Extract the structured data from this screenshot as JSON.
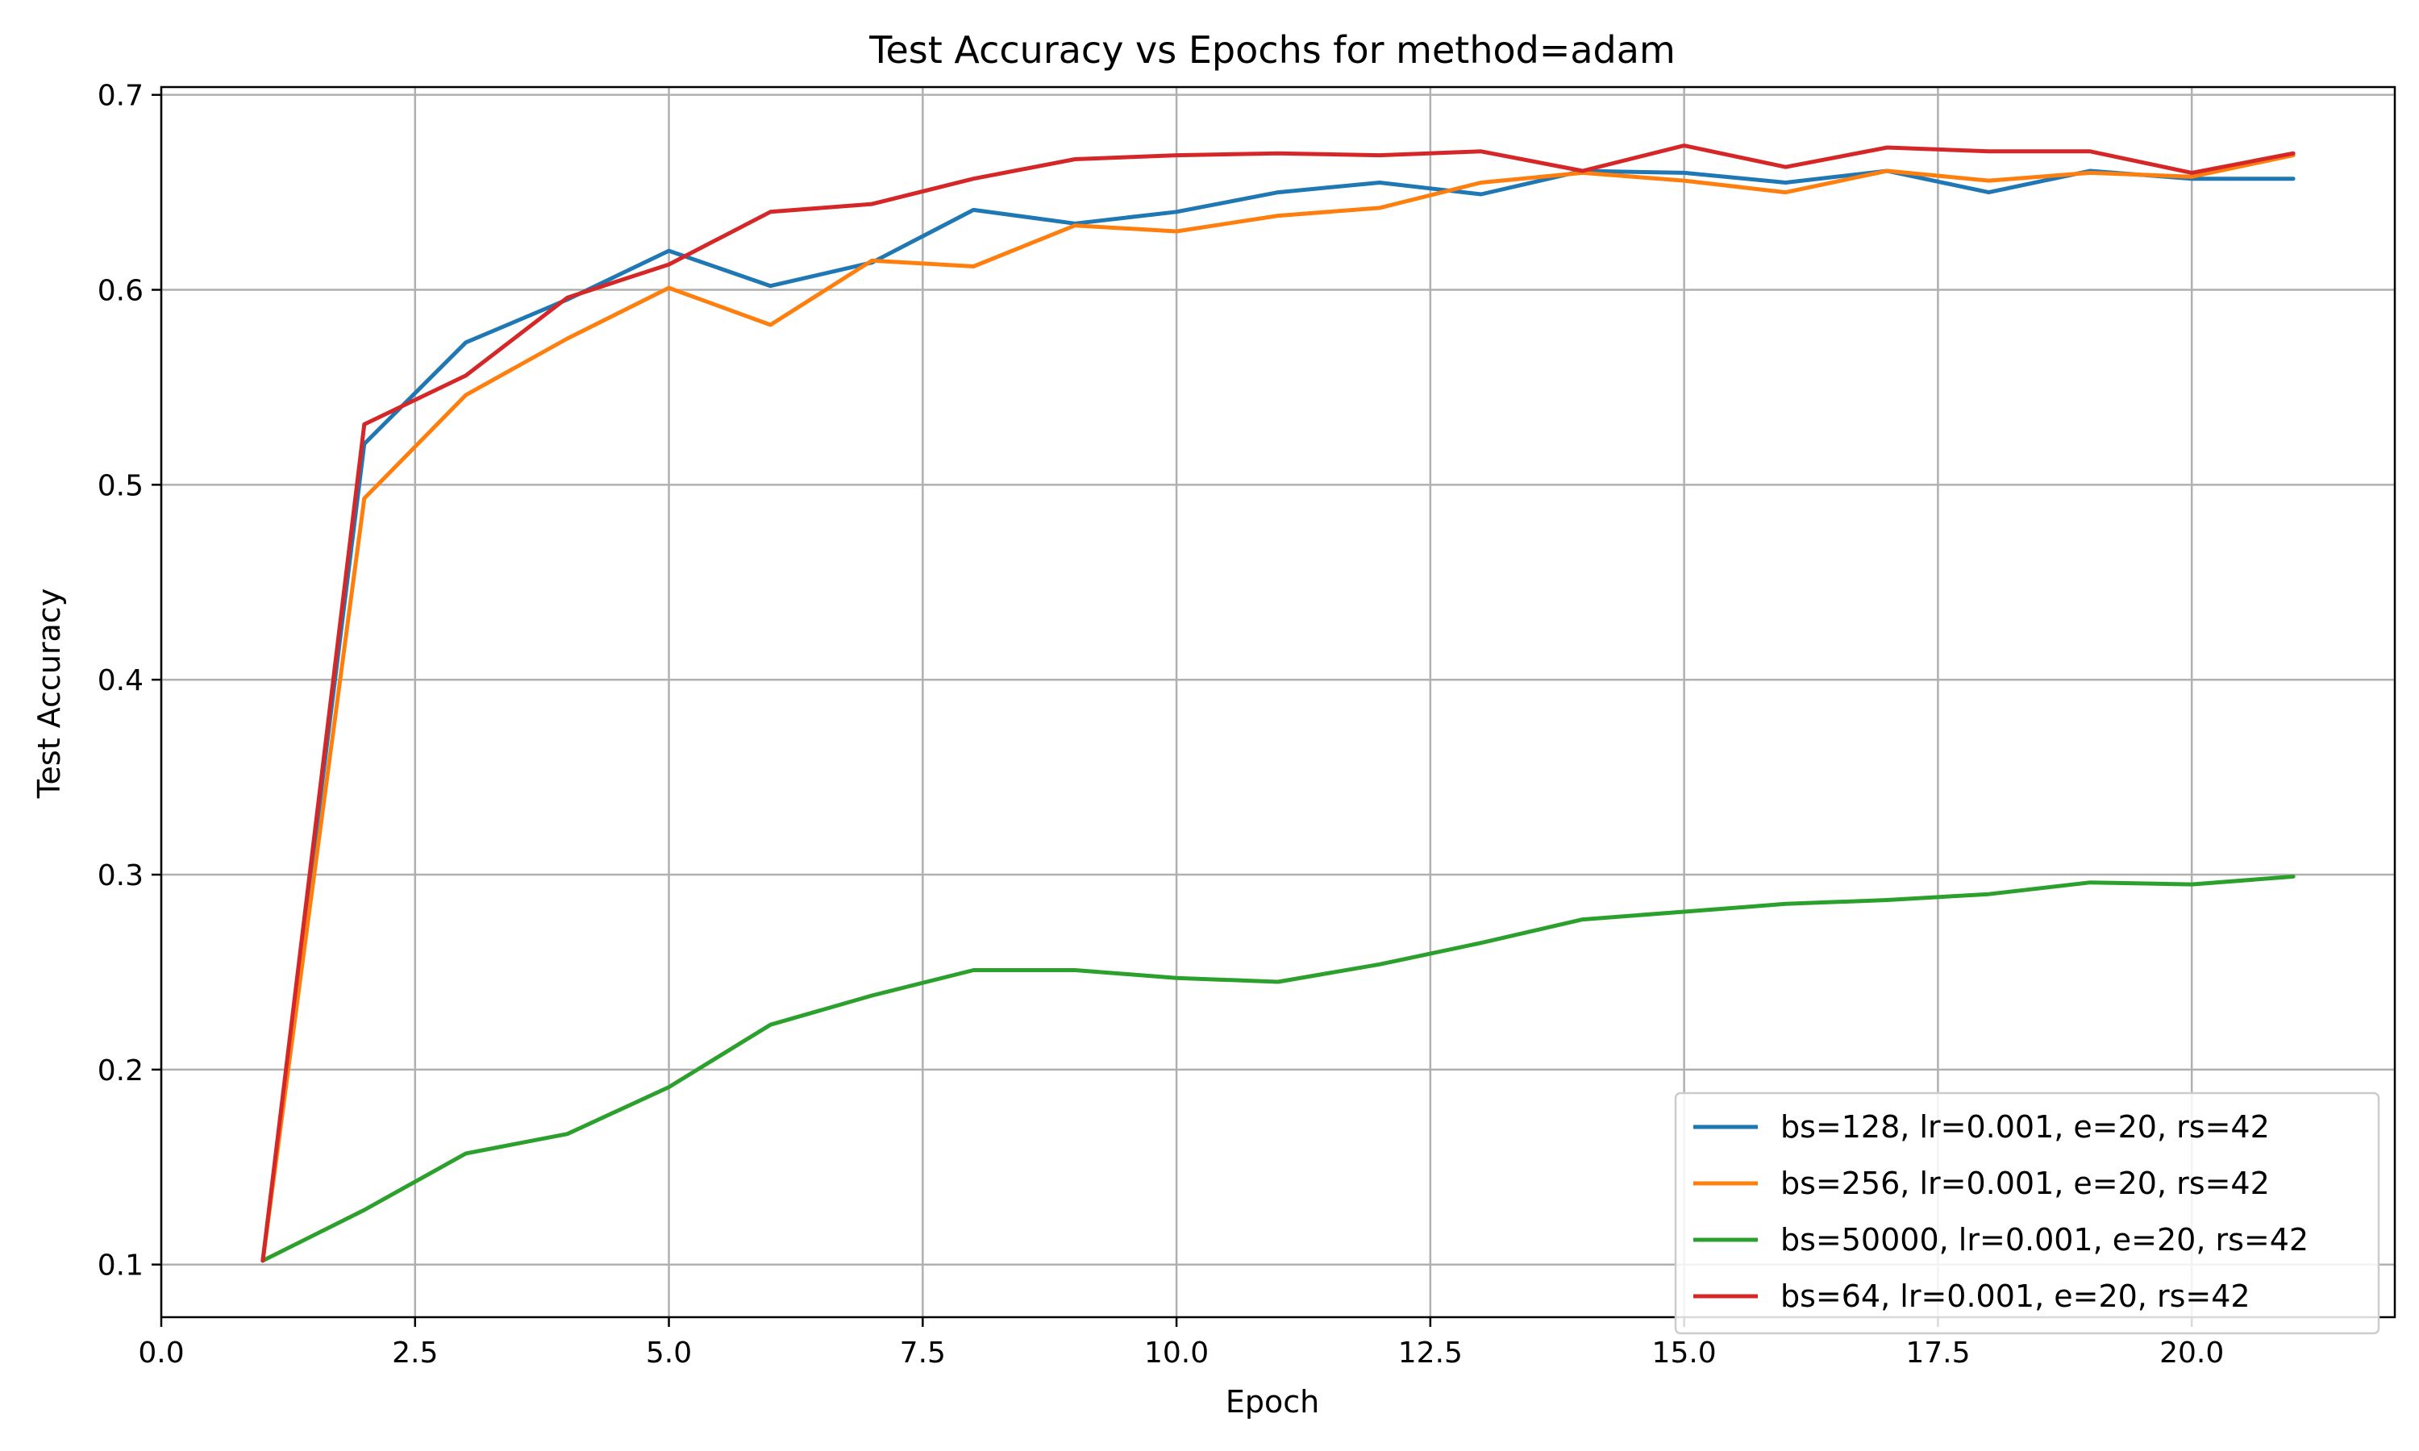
{
  "chart_data": {
    "type": "line",
    "title": "Test Accuracy vs Epochs for method=adam",
    "xlabel": "Epoch",
    "ylabel": "Test Accuracy",
    "xlim": [
      0,
      22
    ],
    "ylim": [
      0.073,
      0.704
    ],
    "xticks": [
      0,
      2.5,
      5,
      7.5,
      10,
      12.5,
      15,
      17.5,
      20
    ],
    "xtick_labels": [
      "0.0",
      "2.5",
      "5.0",
      "7.5",
      "10.0",
      "12.5",
      "15.0",
      "17.5",
      "20.0"
    ],
    "yticks": [
      0.1,
      0.2,
      0.3,
      0.4,
      0.5,
      0.6,
      0.7
    ],
    "ytick_labels": [
      "0.1",
      "0.2",
      "0.3",
      "0.4",
      "0.5",
      "0.6",
      "0.7"
    ],
    "grid": true,
    "legend_position": "lower-right",
    "x": [
      1,
      2,
      3,
      4,
      5,
      6,
      7,
      8,
      9,
      10,
      11,
      12,
      13,
      14,
      15,
      16,
      17,
      18,
      19,
      20,
      21
    ],
    "series": [
      {
        "name": "bs=128, lr=0.001, e=20, rs=42",
        "color": "#1f77b4",
        "values": [
          0.102,
          0.521,
          0.573,
          0.595,
          0.62,
          0.602,
          0.614,
          0.641,
          0.634,
          0.64,
          0.65,
          0.655,
          0.649,
          0.661,
          0.66,
          0.655,
          0.661,
          0.65,
          0.661,
          0.657,
          0.657
        ]
      },
      {
        "name": "bs=256, lr=0.001, e=20, rs=42",
        "color": "#ff7f0e",
        "values": [
          0.102,
          0.493,
          0.546,
          0.575,
          0.601,
          0.582,
          0.615,
          0.612,
          0.633,
          0.63,
          0.638,
          0.642,
          0.655,
          0.66,
          0.656,
          0.65,
          0.661,
          0.656,
          0.66,
          0.658,
          0.669
        ]
      },
      {
        "name": "bs=50000, lr=0.001, e=20, rs=42",
        "color": "#2ca02c",
        "values": [
          0.102,
          0.128,
          0.157,
          0.167,
          0.191,
          0.223,
          0.238,
          0.251,
          0.251,
          0.247,
          0.245,
          0.254,
          0.265,
          0.277,
          0.281,
          0.285,
          0.287,
          0.29,
          0.296,
          0.295,
          0.299
        ]
      },
      {
        "name": "bs=64, lr=0.001, e=20, rs=42",
        "color": "#d62728",
        "values": [
          0.102,
          0.531,
          0.556,
          0.596,
          0.613,
          0.64,
          0.644,
          0.657,
          0.667,
          0.669,
          0.67,
          0.669,
          0.671,
          0.661,
          0.674,
          0.663,
          0.673,
          0.671,
          0.671,
          0.66,
          0.67
        ]
      }
    ]
  }
}
